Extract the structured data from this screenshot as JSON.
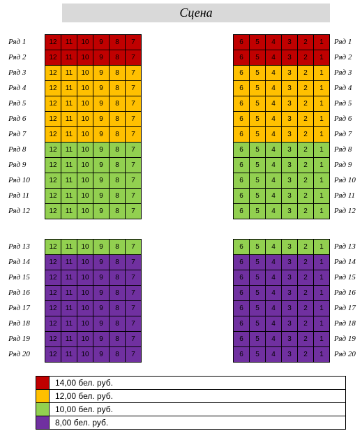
{
  "stage_label": "Сцена",
  "colors": {
    "red": "#c00000",
    "orange": "#ffc000",
    "green": "#92d050",
    "purple": "#7030a0"
  },
  "left_seats": [
    "12",
    "11",
    "10",
    "9",
    "8",
    "7"
  ],
  "right_seats": [
    "6",
    "5",
    "4",
    "3",
    "2",
    "1"
  ],
  "rows": [
    {
      "label": "Ряд 1",
      "color": "red"
    },
    {
      "label": "Ряд 2",
      "color": "red"
    },
    {
      "label": "Ряд 3",
      "color": "orange"
    },
    {
      "label": "Ряд 4",
      "color": "orange"
    },
    {
      "label": "Ряд 5",
      "color": "orange"
    },
    {
      "label": "Ряд 6",
      "color": "orange"
    },
    {
      "label": "Ряд 7",
      "color": "orange"
    },
    {
      "label": "Ряд 8",
      "color": "green"
    },
    {
      "label": "Ряд 9",
      "color": "green"
    },
    {
      "label": "Ряд 10",
      "color": "green"
    },
    {
      "label": "Ряд 11",
      "color": "green"
    },
    {
      "label": "Ряд 12",
      "color": "green"
    },
    {
      "label": "Ряд 13",
      "color": "green"
    },
    {
      "label": "Ряд 14",
      "color": "purple"
    },
    {
      "label": "Ряд 15",
      "color": "purple"
    },
    {
      "label": "Ряд 16",
      "color": "purple"
    },
    {
      "label": "Ряд 17",
      "color": "purple"
    },
    {
      "label": "Ряд 18",
      "color": "purple"
    },
    {
      "label": "Ряд 19",
      "color": "purple"
    },
    {
      "label": "Ряд 20",
      "color": "purple"
    }
  ],
  "legend": [
    {
      "color": "red",
      "text": "14,00 бел. руб."
    },
    {
      "color": "orange",
      "text": "12,00 бел. руб."
    },
    {
      "color": "green",
      "text": "10,00 бел. руб."
    },
    {
      "color": "purple",
      "text": "8,00 бел. руб."
    }
  ]
}
